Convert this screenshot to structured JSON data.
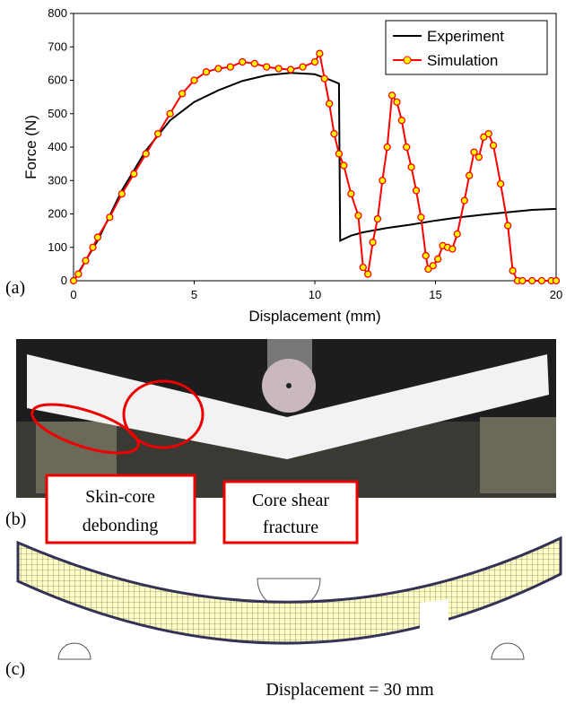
{
  "chart_data": {
    "type": "line",
    "y_label": "Force (N)",
    "x_label": "Displacement (mm)",
    "xlim": [
      0,
      20
    ],
    "ylim": [
      0,
      800
    ],
    "xticks": [
      0,
      5,
      10,
      15,
      20
    ],
    "yticks": [
      0,
      100,
      200,
      300,
      400,
      500,
      600,
      700,
      800
    ],
    "legend": "upper right",
    "series": [
      {
        "name": "Experiment",
        "color": "#000000",
        "x": [
          0,
          1,
          2,
          3,
          4,
          5,
          6,
          7,
          8,
          9,
          10,
          10.5,
          11,
          11.05,
          11.5,
          12,
          13,
          14,
          15,
          16,
          17,
          18,
          19,
          20
        ],
        "values": [
          0,
          120,
          270,
          390,
          480,
          535,
          570,
          598,
          615,
          622,
          618,
          605,
          590,
          120,
          135,
          145,
          158,
          168,
          180,
          190,
          198,
          205,
          212,
          215
        ]
      },
      {
        "name": "Simulation",
        "color": "#ff0000",
        "marker_color": "#ffff00",
        "x": [
          0,
          0.2,
          0.5,
          0.8,
          1,
          1.5,
          2,
          2.5,
          3,
          3.5,
          4,
          4.5,
          5,
          5.5,
          6,
          6.5,
          7,
          7.5,
          8,
          8.5,
          9,
          9.5,
          10,
          10.2,
          10.4,
          10.6,
          10.8,
          11,
          11.2,
          11.5,
          11.8,
          12,
          12.2,
          12.4,
          12.6,
          12.8,
          13,
          13.2,
          13.4,
          13.6,
          13.8,
          14,
          14.2,
          14.4,
          14.6,
          14.7,
          14.9,
          15.1,
          15.3,
          15.5,
          15.7,
          15.9,
          16.2,
          16.4,
          16.6,
          16.8,
          17,
          17.2,
          17.4,
          17.7,
          18,
          18.2,
          18.4,
          18.6,
          19,
          19.4,
          19.8,
          20
        ],
        "values": [
          0,
          20,
          60,
          100,
          130,
          190,
          260,
          320,
          380,
          440,
          500,
          560,
          600,
          625,
          635,
          640,
          655,
          650,
          640,
          635,
          632,
          640,
          655,
          680,
          605,
          530,
          440,
          380,
          345,
          260,
          195,
          40,
          20,
          115,
          185,
          300,
          400,
          555,
          535,
          480,
          400,
          340,
          270,
          190,
          75,
          35,
          45,
          65,
          105,
          100,
          95,
          140,
          240,
          315,
          385,
          370,
          430,
          440,
          405,
          290,
          165,
          30,
          0,
          0,
          0,
          0,
          0,
          0
        ]
      }
    ]
  },
  "panels": {
    "a": "(a)",
    "b": "(b)",
    "c": "(c)"
  },
  "callouts": [
    {
      "lines": [
        "Skin-core",
        "debonding"
      ]
    },
    {
      "lines": [
        "Core shear",
        "fracture"
      ]
    }
  ],
  "caption": "Displacement = 30 mm"
}
